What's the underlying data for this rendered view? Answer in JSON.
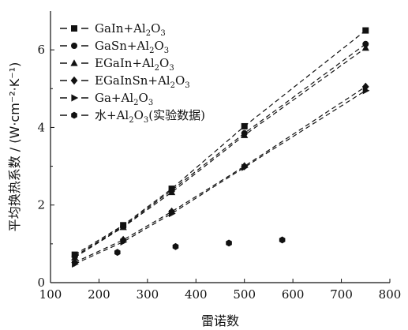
{
  "chart_data": {
    "type": "scatter",
    "xlabel": "雷诺数",
    "ylabel": "平均换热系数 / (W·cm⁻²·K⁻¹)",
    "xlim": [
      100,
      800
    ],
    "ylim": [
      0,
      7
    ],
    "xticks": [
      100,
      200,
      300,
      400,
      500,
      600,
      700,
      800
    ],
    "yticks": [
      0,
      2,
      4,
      6
    ],
    "legend_position": "top-left",
    "series": [
      {
        "name": "GaIn+Al2O3",
        "marker": "square",
        "dashed_fit": true,
        "x": [
          150,
          250,
          350,
          500,
          750
        ],
        "y": [
          0.72,
          1.48,
          2.42,
          4.03,
          6.5
        ]
      },
      {
        "name": "GaSn+Al2O3",
        "marker": "circle",
        "dashed_fit": true,
        "x": [
          150,
          250,
          350,
          500,
          750
        ],
        "y": [
          0.68,
          1.45,
          2.38,
          3.85,
          6.15
        ]
      },
      {
        "name": "EGaIn+Al2O3",
        "marker": "triangle-up",
        "dashed_fit": true,
        "x": [
          150,
          250,
          350,
          500,
          750
        ],
        "y": [
          0.65,
          1.43,
          2.33,
          3.8,
          6.05
        ]
      },
      {
        "name": "EGaInSn+Al2O3",
        "marker": "diamond",
        "dashed_fit": true,
        "x": [
          150,
          250,
          350,
          500,
          750
        ],
        "y": [
          0.52,
          1.1,
          1.83,
          3.0,
          5.05
        ]
      },
      {
        "name": "Ga+Al2O3",
        "marker": "triangle-right",
        "dashed_fit": true,
        "x": [
          150,
          250,
          350,
          500,
          750
        ],
        "y": [
          0.48,
          1.05,
          1.78,
          2.97,
          4.95
        ]
      },
      {
        "name": "水+Al2O3(实验数据)",
        "marker": "hexagon",
        "dashed_fit": false,
        "x": [
          238,
          358,
          468,
          578
        ],
        "y": [
          0.78,
          0.93,
          1.02,
          1.1
        ]
      }
    ],
    "legend_parts": [
      {
        "pre": "GaIn+Al",
        "sub1": "2",
        "mid": "O",
        "sub2": "3",
        "post": ""
      },
      {
        "pre": "GaSn+Al",
        "sub1": "2",
        "mid": "O",
        "sub2": "3",
        "post": ""
      },
      {
        "pre": "EGaIn+Al",
        "sub1": "2",
        "mid": "O",
        "sub2": "3",
        "post": ""
      },
      {
        "pre": "EGaInSn+Al",
        "sub1": "2",
        "mid": "O",
        "sub2": "3",
        "post": ""
      },
      {
        "pre": "Ga+Al",
        "sub1": "2",
        "mid": "O",
        "sub2": "3",
        "post": ""
      },
      {
        "pre": "水+Al",
        "sub1": "2",
        "mid": "O",
        "sub2": "3",
        "post": "(实验数据)"
      }
    ]
  }
}
